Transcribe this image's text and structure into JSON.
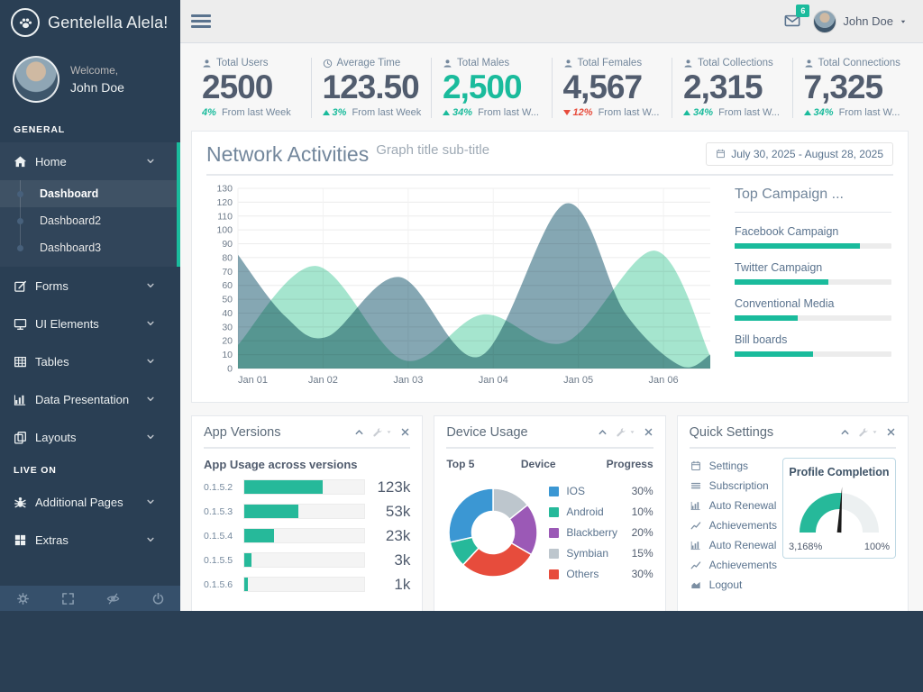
{
  "brand": {
    "title": "Gentelella Alela!"
  },
  "topnav": {
    "message_count": "6",
    "user_name": "John Doe"
  },
  "sidebar": {
    "welcome_label": "Welcome,",
    "user_name": "John Doe",
    "sections": [
      {
        "label": "GENERAL",
        "items": [
          {
            "icon": "home",
            "label": "Home",
            "active": true,
            "children": [
              {
                "label": "Dashboard",
                "active": true
              },
              {
                "label": "Dashboard2"
              },
              {
                "label": "Dashboard3"
              }
            ]
          },
          {
            "icon": "edit",
            "label": "Forms"
          },
          {
            "icon": "desktop",
            "label": "UI Elements"
          },
          {
            "icon": "table",
            "label": "Tables"
          },
          {
            "icon": "bar-chart",
            "label": "Data Presentation"
          },
          {
            "icon": "layers",
            "label": "Layouts"
          }
        ]
      },
      {
        "label": "LIVE ON",
        "items": [
          {
            "icon": "bug",
            "label": "Additional Pages"
          },
          {
            "icon": "windows",
            "label": "Extras"
          }
        ]
      }
    ],
    "footer_icons": [
      "gear",
      "expand",
      "eye-slash",
      "power"
    ]
  },
  "tiles": [
    {
      "icon": "user",
      "label": "Total Users",
      "value": "2500",
      "value_color": "#515C6E",
      "dir": "none",
      "pct": "4%",
      "pct_color": "green",
      "rest": "From last Week"
    },
    {
      "icon": "clock",
      "label": "Average Time",
      "value": "123.50",
      "value_color": "#515C6E",
      "dir": "up",
      "pct": "3%",
      "pct_color": "green",
      "rest": "From last Week"
    },
    {
      "icon": "user",
      "label": "Total Males",
      "value": "2,500",
      "value_color": "#1ABB9C",
      "dir": "up",
      "pct": "34%",
      "pct_color": "green",
      "rest": "From last W..."
    },
    {
      "icon": "user",
      "label": "Total Females",
      "value": "4,567",
      "value_color": "#515C6E",
      "dir": "down",
      "pct": "12%",
      "pct_color": "red",
      "rest": "From last W..."
    },
    {
      "icon": "user",
      "label": "Total Collections",
      "value": "2,315",
      "value_color": "#515C6E",
      "dir": "up",
      "pct": "34%",
      "pct_color": "green",
      "rest": "From last W..."
    },
    {
      "icon": "user",
      "label": "Total Connections",
      "value": "7,325",
      "value_color": "#515C6E",
      "dir": "up",
      "pct": "34%",
      "pct_color": "green",
      "rest": "From last W..."
    }
  ],
  "network_panel": {
    "title": "Network Activities",
    "subtitle": "Graph title sub-title",
    "date_range": "July 30, 2025 - August 28, 2025",
    "campaign_title": "Top Campaign ...",
    "campaigns": [
      {
        "label": "Facebook Campaign",
        "pct": 80
      },
      {
        "label": "Twitter Campaign",
        "pct": 60
      },
      {
        "label": "Conventional Media",
        "pct": 40
      },
      {
        "label": "Bill boards",
        "pct": 50
      }
    ]
  },
  "app_versions_panel": {
    "title": "App Versions",
    "subtitle": "App Usage across versions",
    "rows": [
      {
        "version": "0.1.5.2",
        "pct": 65,
        "value": "123k"
      },
      {
        "version": "0.1.5.3",
        "pct": 45,
        "value": "53k"
      },
      {
        "version": "0.1.5.4",
        "pct": 25,
        "value": "23k"
      },
      {
        "version": "0.1.5.5",
        "pct": 6,
        "value": "3k"
      },
      {
        "version": "0.1.5.6",
        "pct": 3,
        "value": "1k"
      }
    ]
  },
  "device_panel": {
    "title": "Device Usage",
    "col1": "Top 5",
    "col2": "Device",
    "col3": "Progress"
  },
  "settings_panel": {
    "title": "Quick Settings",
    "items": [
      {
        "icon": "calendar",
        "label": "Settings"
      },
      {
        "icon": "list",
        "label": "Subscription"
      },
      {
        "icon": "bar-chart",
        "label": "Auto Renewal"
      },
      {
        "icon": "line-chart",
        "label": "Achievements"
      },
      {
        "icon": "bar-chart",
        "label": "Auto Renewal"
      },
      {
        "icon": "line-chart",
        "label": "Achievements"
      },
      {
        "icon": "area-chart",
        "label": "Logout"
      }
    ]
  },
  "chart_data": [
    {
      "type": "area",
      "title": "Network Activities",
      "x_labels": [
        "Jan 01",
        "Jan 02",
        "Jan 03",
        "Jan 04",
        "Jan 05",
        "Jan 06"
      ],
      "x_max": 5.55,
      "ylim": [
        0,
        130
      ],
      "y_step": 10,
      "grid": true,
      "legend_position": "none",
      "series": [
        {
          "name": "series-1",
          "color": "#85A7B3",
          "points": [
            [
              0,
              82
            ],
            [
              0.55,
              38
            ],
            [
              1.05,
              23
            ],
            [
              1.9,
              66
            ],
            [
              2.85,
              9
            ],
            [
              3.85,
              119
            ],
            [
              4.55,
              40
            ],
            [
              5.2,
              2
            ],
            [
              5.55,
              10
            ]
          ]
        },
        {
          "name": "series-2",
          "color": "#A5E5CE",
          "points": [
            [
              0,
              17
            ],
            [
              0.92,
              74
            ],
            [
              1.95,
              6
            ],
            [
              2.88,
              39
            ],
            [
              3.85,
              19
            ],
            [
              4.9,
              85
            ],
            [
              5.55,
              9
            ]
          ]
        }
      ]
    },
    {
      "type": "pie",
      "title": "Device Usage",
      "slices": [
        {
          "label": "IOS",
          "value": 30,
          "pct_label": "30%",
          "color": "#3B97D3"
        },
        {
          "label": "Android",
          "value": 10,
          "pct_label": "10%",
          "color": "#26B99A"
        },
        {
          "label": "Blackberry",
          "value": 20,
          "pct_label": "20%",
          "color": "#9B59B6"
        },
        {
          "label": "Symbian",
          "value": 15,
          "pct_label": "15%",
          "color": "#BDC6CD"
        },
        {
          "label": "Others",
          "value": 30,
          "pct_label": "30%",
          "color": "#E74C3C"
        }
      ],
      "draw_order_from_top_clockwise": [
        "Symbian",
        "Blackberry",
        "Others",
        "Android",
        "IOS"
      ],
      "donut_hole_ratio": 0.48
    },
    {
      "type": "gauge",
      "title": "Profile Completion",
      "value_fraction": 0.52,
      "min_label": "3,168%",
      "max_label": "100%",
      "fill_color": "#26B99A",
      "track_color": "#ECF0F1",
      "needle_color": "#1B1B1B"
    }
  ]
}
